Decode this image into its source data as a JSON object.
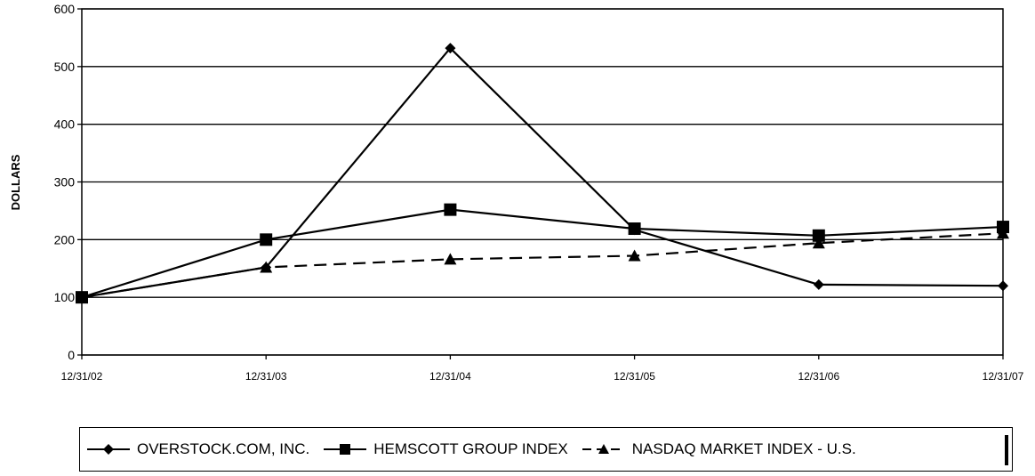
{
  "chart_data": {
    "type": "line",
    "title": "",
    "xlabel": "",
    "ylabel": "DOLLARS",
    "ylim": [
      0,
      600
    ],
    "yticks": [
      0,
      100,
      200,
      300,
      400,
      500,
      600
    ],
    "grid": "horizontal",
    "legend_position": "bottom",
    "categories": [
      "12/31/02",
      "12/31/03",
      "12/31/04",
      "12/31/05",
      "12/31/06",
      "12/31/07"
    ],
    "series": [
      {
        "name": "OVERSTOCK.COM, INC.",
        "marker": "diamond",
        "dash": "solid",
        "values": [
          100,
          152,
          532,
          217,
          122,
          120
        ]
      },
      {
        "name": "HEMSCOTT GROUP INDEX",
        "marker": "square",
        "dash": "solid",
        "values": [
          100,
          200,
          252,
          219,
          207,
          222
        ]
      },
      {
        "name": "NASDAQ MARKET INDEX - U.S.",
        "marker": "triangle",
        "dash": "dashed",
        "values": [
          100,
          152,
          166,
          172,
          194,
          211
        ]
      }
    ]
  }
}
